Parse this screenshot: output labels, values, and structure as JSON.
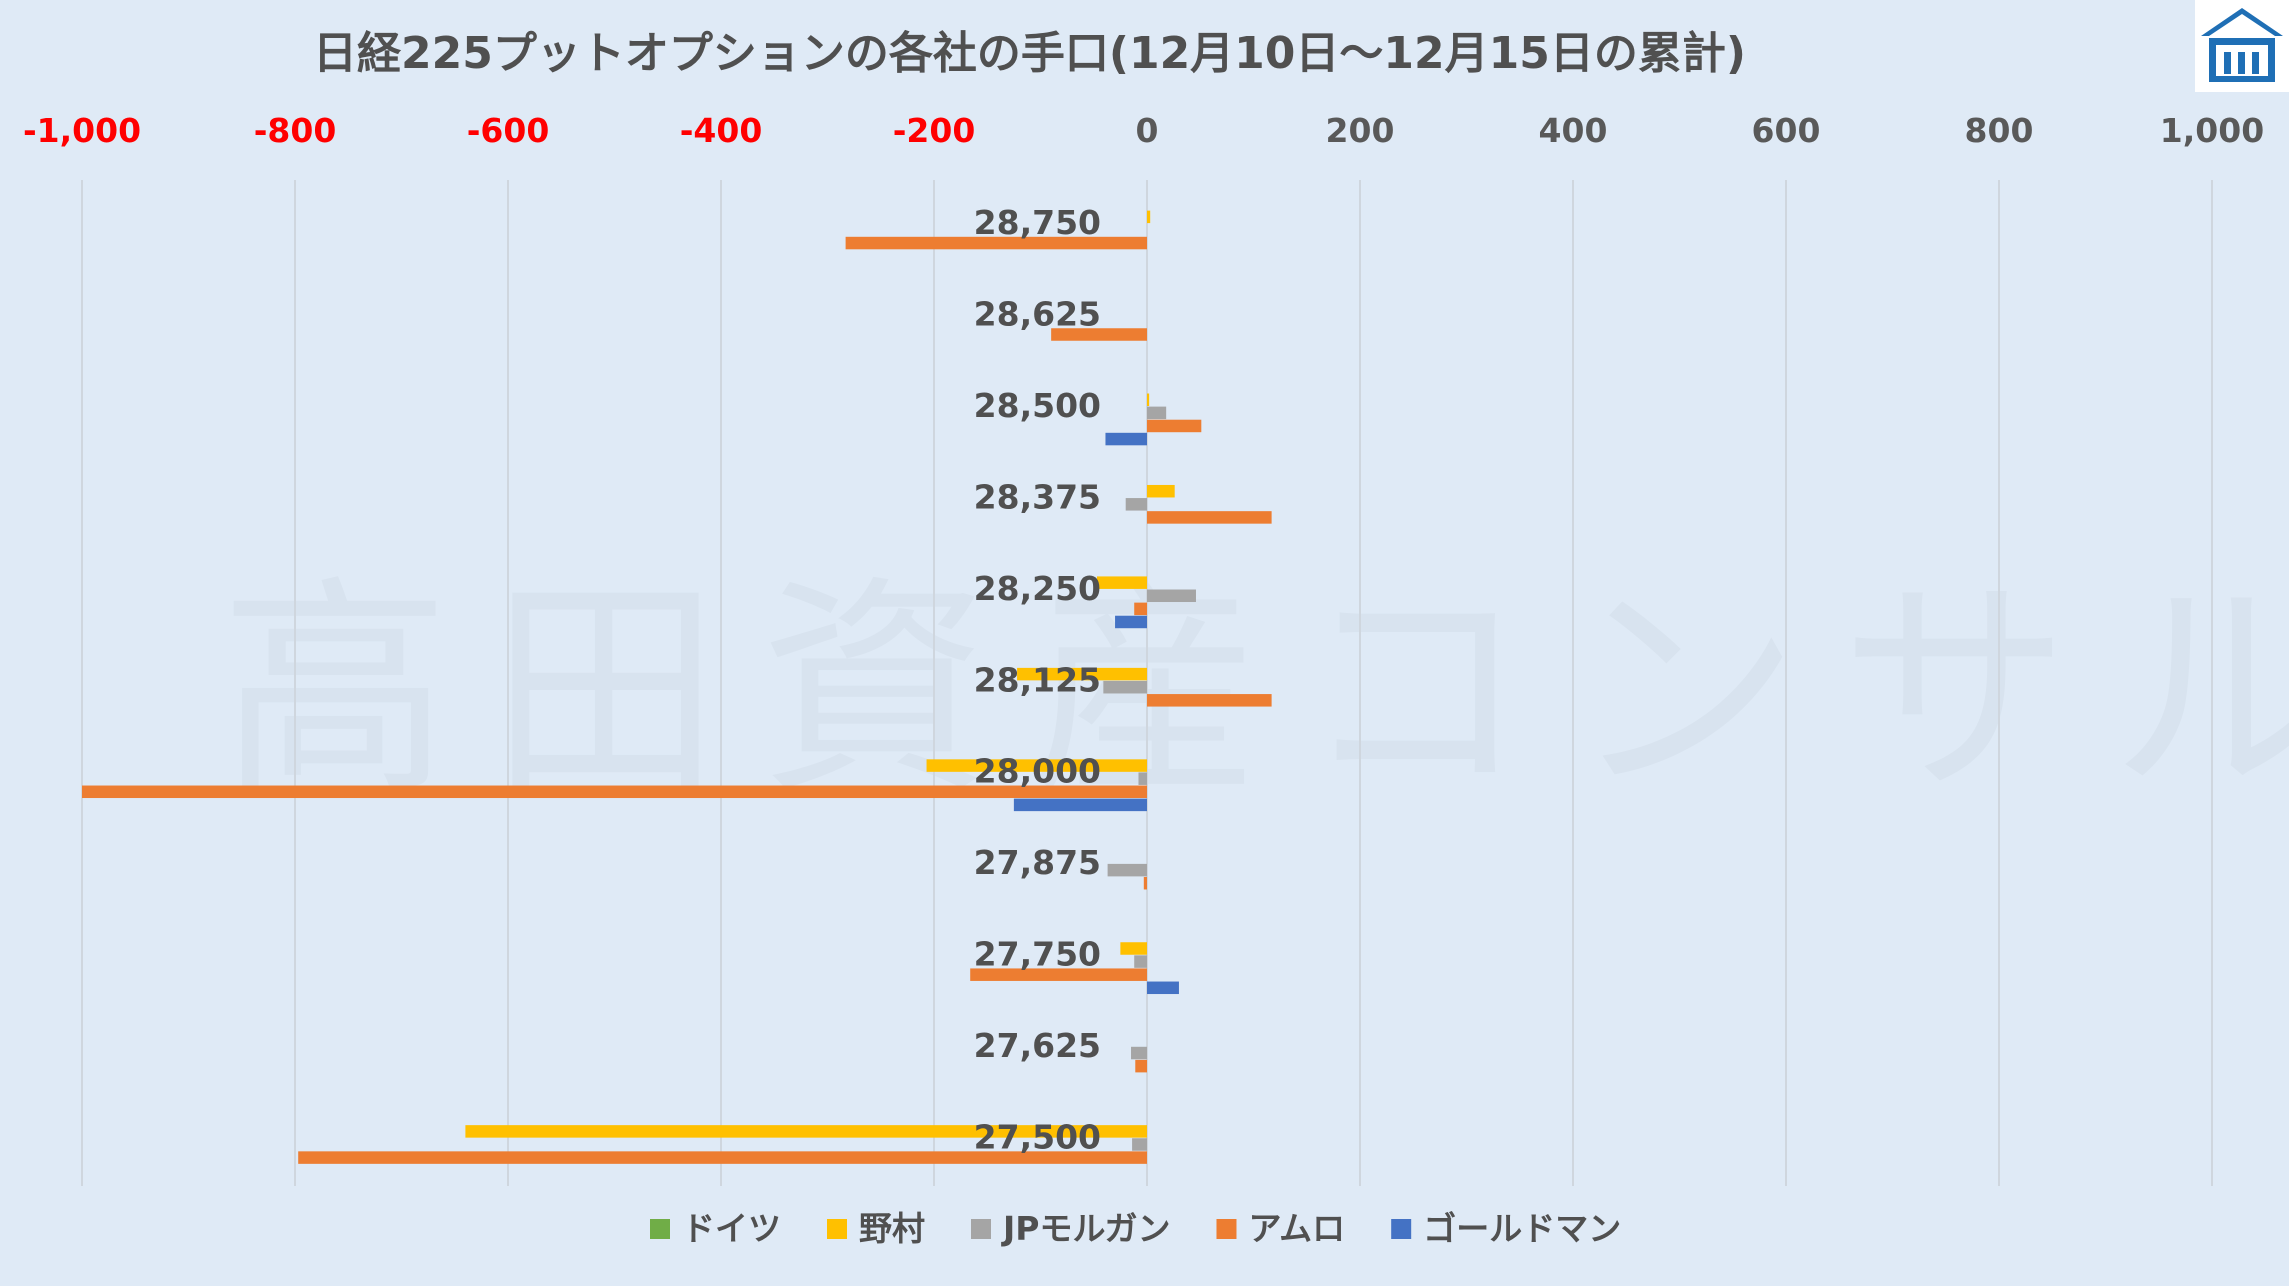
{
  "chart_data": {
    "type": "bar",
    "orientation": "horizontal",
    "title": "日経225プットオプションの各社の手口(12月10日～12月15日の累計)",
    "xlim": [
      -1000,
      1000
    ],
    "x_ticks": [
      -1000,
      -800,
      -600,
      -400,
      -200,
      0,
      200,
      400,
      600,
      800,
      1000
    ],
    "x_tick_labels": [
      "-1,000",
      "-800",
      "-600",
      "-400",
      "-200",
      "0",
      "200",
      "400",
      "600",
      "800",
      "1,000"
    ],
    "negative_tick_color": "#ff0000",
    "positive_tick_color": "#595959",
    "grid": true,
    "legend_position": "bottom",
    "categories": [
      "28,750",
      "28,625",
      "28,500",
      "28,375",
      "28,250",
      "28,125",
      "28,000",
      "27,875",
      "27,750",
      "27,625",
      "27,500"
    ],
    "series": [
      {
        "name": "ドイツ",
        "color": "#70ad47",
        "values": [
          0,
          0,
          0,
          0,
          0,
          0,
          0,
          0,
          0,
          0,
          0
        ]
      },
      {
        "name": "野村",
        "color": "#ffc000",
        "values": [
          3,
          0,
          2,
          26,
          -47,
          -122,
          -207,
          0,
          -25,
          0,
          -640
        ]
      },
      {
        "name": "JPモルガン",
        "color": "#a5a5a5",
        "values": [
          0,
          0,
          18,
          -20,
          46,
          -41,
          -8,
          -37,
          -12,
          -15,
          -14
        ]
      },
      {
        "name": "アムロ",
        "color": "#ed7d31",
        "values": [
          -283,
          -90,
          51,
          117,
          -12,
          117,
          -1000,
          -3,
          -166,
          -11,
          -797
        ]
      },
      {
        "name": "ゴールドマン",
        "color": "#4472c4",
        "values": [
          0,
          0,
          -39,
          0,
          -30,
          0,
          -125,
          0,
          30,
          0,
          0
        ]
      }
    ]
  },
  "watermark": "高田資産コンサル",
  "logo": "shield-house-logo"
}
